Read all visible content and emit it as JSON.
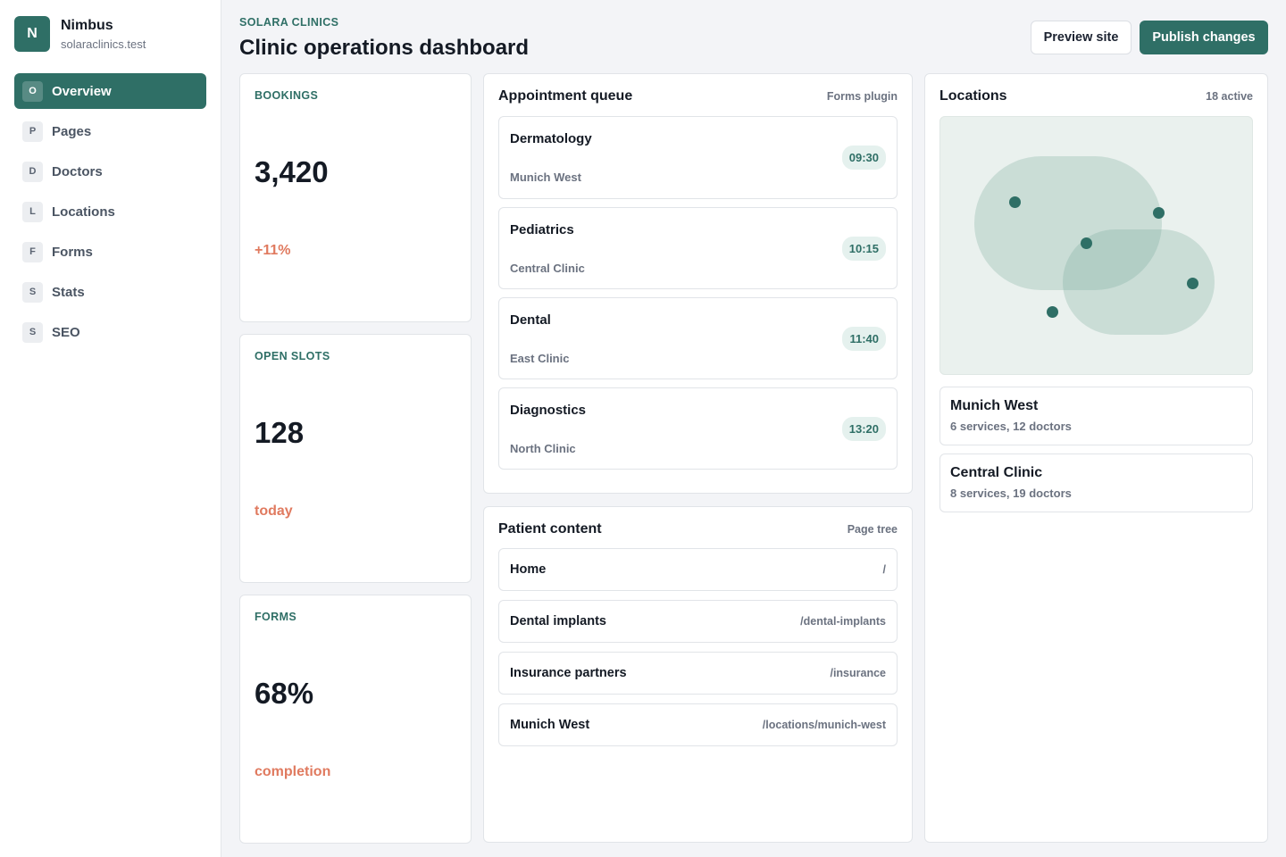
{
  "brand": {
    "initial": "N",
    "name": "Nimbus",
    "domain": "solaraclinics.test"
  },
  "sidebar": {
    "items": [
      {
        "icon": "O",
        "label": "Overview",
        "active": true
      },
      {
        "icon": "P",
        "label": "Pages"
      },
      {
        "icon": "D",
        "label": "Doctors"
      },
      {
        "icon": "L",
        "label": "Locations"
      },
      {
        "icon": "F",
        "label": "Forms"
      },
      {
        "icon": "S",
        "label": "Stats"
      },
      {
        "icon": "S",
        "label": "SEO"
      }
    ]
  },
  "header": {
    "eyebrow": "SOLARA CLINICS",
    "title": "Clinic operations dashboard",
    "preview_label": "Preview site",
    "publish_label": "Publish changes"
  },
  "kpis": [
    {
      "label": "BOOKINGS",
      "value": "3,420",
      "sub": "+11%"
    },
    {
      "label": "OPEN SLOTS",
      "value": "128",
      "sub": "today"
    },
    {
      "label": "FORMS",
      "value": "68%",
      "sub": "completion"
    }
  ],
  "queue": {
    "title": "Appointment queue",
    "meta": "Forms plugin",
    "items": [
      {
        "name": "Dermatology",
        "location": "Munich West",
        "time": "09:30"
      },
      {
        "name": "Pediatrics",
        "location": "Central Clinic",
        "time": "10:15"
      },
      {
        "name": "Dental",
        "location": "East Clinic",
        "time": "11:40"
      },
      {
        "name": "Diagnostics",
        "location": "North Clinic",
        "time": "13:20"
      }
    ]
  },
  "content": {
    "title": "Patient content",
    "meta": "Page tree",
    "pages": [
      {
        "name": "Home",
        "slug": "/"
      },
      {
        "name": "Dental implants",
        "slug": "/dental-implants"
      },
      {
        "name": "Insurance partners",
        "slug": "/insurance"
      },
      {
        "name": "Munich West",
        "slug": "/locations/munich-west"
      }
    ]
  },
  "locations": {
    "title": "Locations",
    "meta": "18 active",
    "items": [
      {
        "name": "Munich West",
        "desc": "6 services, 12 doctors"
      },
      {
        "name": "Central Clinic",
        "desc": "8 services, 19 doctors"
      }
    ]
  },
  "colors": {
    "accent": "#2f6f66",
    "highlight": "#e07a5f",
    "pill_bg": "#e5f1ee"
  }
}
